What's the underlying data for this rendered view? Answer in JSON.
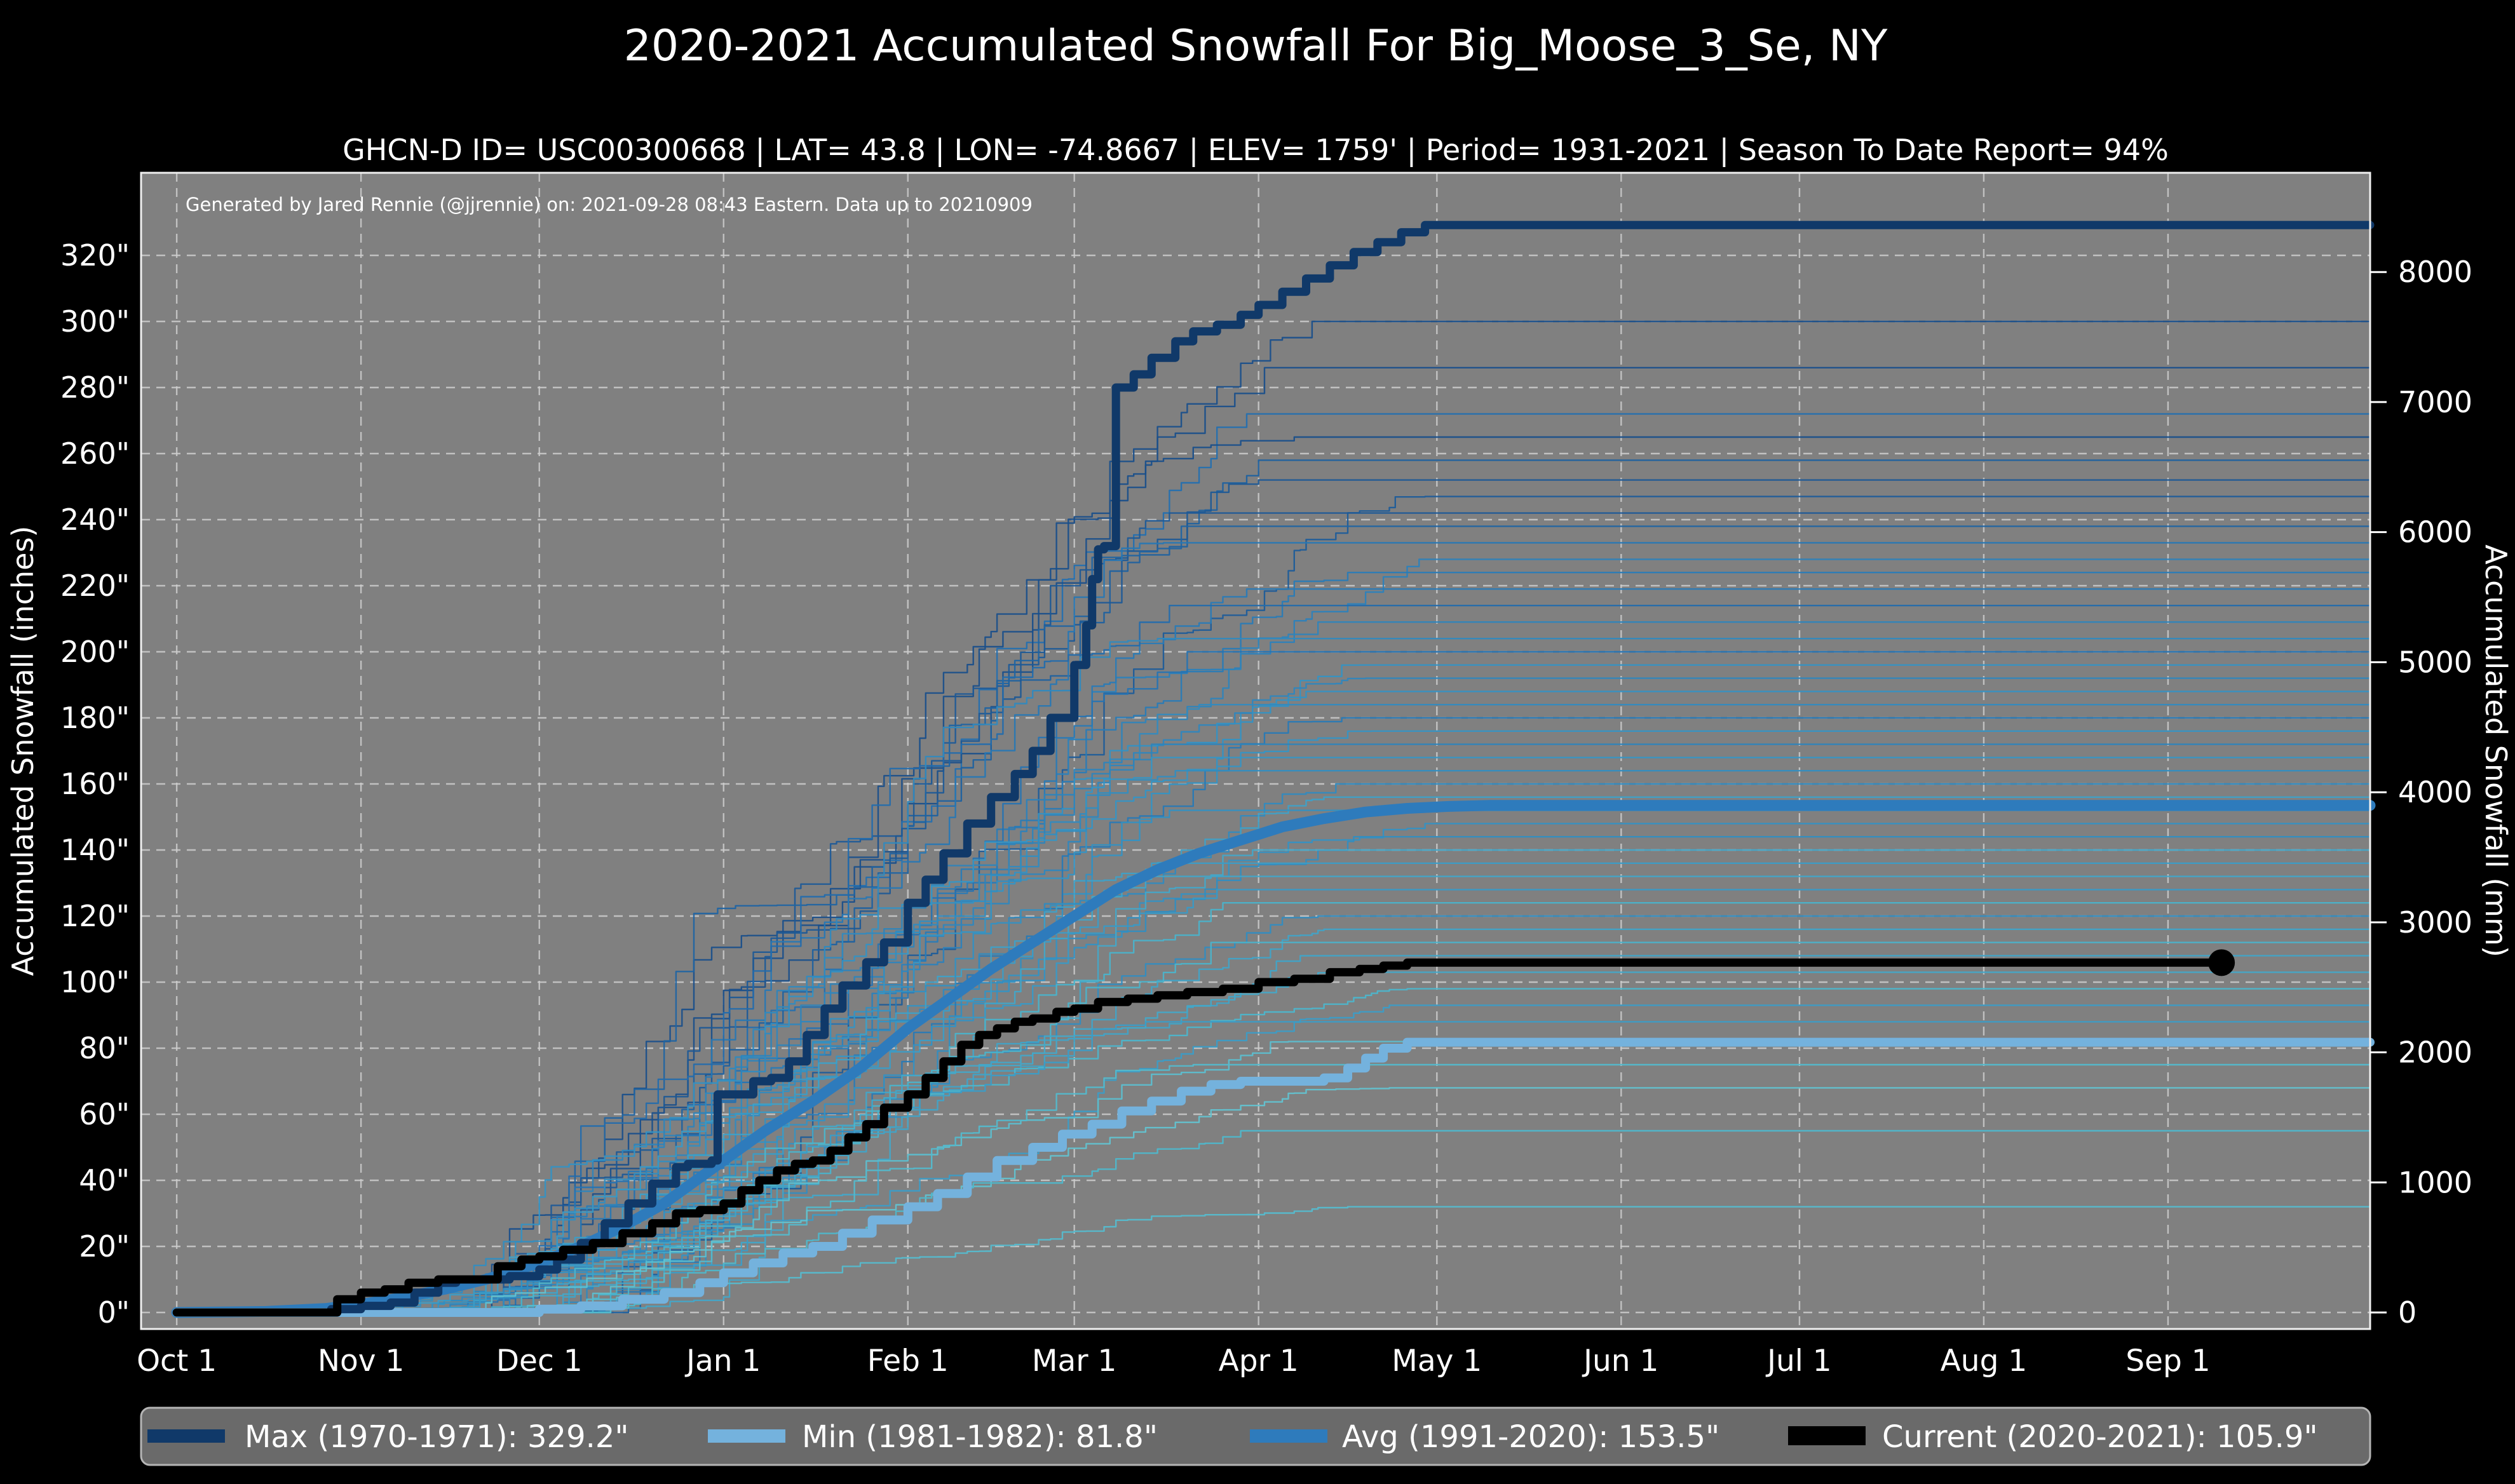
{
  "page": {
    "background": "#000000",
    "plot_bg": "#808080",
    "grid_color": "#cdcdcd",
    "border_color": "#f0f0f0",
    "text_color": "#ffffff"
  },
  "header": {
    "title": "2020-2021 Accumulated Snowfall For Big_Moose_3_Se, NY",
    "subtitle": "GHCN-D ID= USC00300668 | LAT= 43.8 | LON= -74.8667 | ELEV= 1759' | Period= 1931-2021 | Season To Date Report= 94%"
  },
  "annotation": "Generated by Jared Rennie (@jjrennie) on: 2021-09-28 08:43 Eastern. Data up to 20210909",
  "chart_data": {
    "type": "line",
    "title": "2020-2021 Accumulated Snowfall For Big_Moose_3_Se, NY",
    "xlabel": "",
    "ylabel_left": "Accumulated Snowfall (inches)",
    "ylabel_right": "Accumulated Snowfall (mm)",
    "x_axis": {
      "tick_labels": [
        "Oct 1",
        "Nov 1",
        "Dec 1",
        "Jan 1",
        "Feb 1",
        "Mar 1",
        "Apr 1",
        "May 1",
        "Jun 1",
        "Jul 1",
        "Aug 1",
        "Sep 1"
      ],
      "tick_days": [
        0,
        31,
        61,
        92,
        123,
        151,
        182,
        212,
        243,
        273,
        304,
        335
      ],
      "domain_days": [
        -6,
        369
      ]
    },
    "y_axis_left": {
      "label": "Accumulated Snowfall (inches)",
      "tick_values": [
        0,
        20,
        40,
        60,
        80,
        100,
        120,
        140,
        160,
        180,
        200,
        220,
        240,
        260,
        280,
        300,
        320
      ],
      "tick_labels": [
        "0\"",
        "20\"",
        "40\"",
        "60\"",
        "80\"",
        "100\"",
        "120\"",
        "140\"",
        "160\"",
        "180\"",
        "200\"",
        "220\"",
        "240\"",
        "260\"",
        "280\"",
        "300\"",
        "320\""
      ],
      "range_inches": [
        -5,
        345
      ],
      "grid": true
    },
    "y_axis_right": {
      "label": "Accumulated Snowfall (mm)",
      "tick_values": [
        0,
        1000,
        2000,
        3000,
        4000,
        5000,
        6000,
        7000,
        8000
      ],
      "tick_labels": [
        "0",
        "1000",
        "2000",
        "3000",
        "4000",
        "5000",
        "6000",
        "7000",
        "8000"
      ],
      "mm_per_inch": 25.4
    },
    "series": [
      {
        "id": "max",
        "legend_label": "Max (1970-1971):  329.2\"",
        "final_value_inches": 329.2,
        "color": "#103969",
        "line_width": 13,
        "style": "step",
        "days": [
          0,
          18,
          26,
          31,
          36,
          40,
          44,
          47,
          52,
          56,
          61,
          64,
          68,
          72,
          76,
          80,
          84,
          86,
          88,
          90,
          91,
          97,
          100,
          103,
          106,
          109,
          112,
          116,
          119,
          123,
          126,
          129,
          133,
          137,
          141,
          144,
          147,
          151,
          153,
          154,
          155,
          156,
          158,
          161,
          164,
          168,
          171,
          175,
          179,
          182,
          186,
          190,
          194,
          198,
          202,
          206,
          210,
          369
        ],
        "values": [
          0,
          0,
          1,
          2,
          3,
          6,
          9,
          10,
          10,
          11,
          13,
          16,
          21,
          27,
          33,
          39,
          44,
          45,
          45,
          46,
          66,
          70,
          71,
          76,
          84,
          92,
          99,
          106,
          112,
          124,
          131,
          139,
          148,
          156,
          163,
          170,
          180,
          196,
          208,
          222,
          231,
          232,
          280,
          284,
          289,
          294,
          297,
          299,
          302,
          305,
          309,
          313,
          317,
          321,
          324,
          327,
          329.2,
          329.2
        ]
      },
      {
        "id": "min",
        "legend_label": "Min (1981-1982):  81.8\"",
        "final_value_inches": 81.8,
        "color": "#74b2dd",
        "line_width": 14,
        "style": "step",
        "days": [
          0,
          55,
          61,
          68,
          75,
          82,
          88,
          92,
          97,
          102,
          107,
          112,
          117,
          123,
          128,
          133,
          138,
          144,
          149,
          154,
          159,
          164,
          169,
          174,
          179,
          184,
          189,
          193,
          197,
          200,
          203,
          207,
          369
        ],
        "values": [
          0,
          0,
          1,
          2,
          4,
          6,
          9,
          12,
          15,
          18,
          20,
          24,
          28,
          32,
          36,
          41,
          46,
          50,
          54,
          57,
          61,
          64,
          67,
          69,
          70,
          70,
          70,
          71,
          74,
          77,
          80,
          81.8,
          81.8
        ]
      },
      {
        "id": "avg",
        "legend_label": "Avg (1991-2020):  153.5\"",
        "final_value_inches": 153.5,
        "color": "#2e7bbc",
        "line_width": 17,
        "style": "smooth",
        "days": [
          0,
          15,
          25,
          31,
          38,
          45,
          52,
          61,
          68,
          75,
          82,
          92,
          99,
          107,
          115,
          123,
          130,
          137,
          144,
          151,
          158,
          165,
          172,
          179,
          186,
          193,
          200,
          207,
          214,
          221,
          369
        ],
        "values": [
          0,
          0.3,
          1.2,
          2.5,
          4.5,
          7,
          10,
          15,
          20,
          26,
          33,
          46,
          55,
          64,
          74,
          86,
          95,
          104,
          112,
          120,
          128,
          134,
          139,
          143,
          147,
          149.5,
          151.5,
          152.6,
          153.2,
          153.5,
          153.5
        ]
      },
      {
        "id": "current",
        "legend_label": "Current (2020-2021):  105.9\"",
        "final_value_inches": 105.9,
        "color": "#000000",
        "line_width": 13,
        "style": "step",
        "end_marker": {
          "day": 344,
          "value": 105.9,
          "radius": 21
        },
        "days": [
          0,
          24,
          27,
          31,
          35,
          39,
          44,
          49,
          54,
          58,
          61,
          65,
          70,
          75,
          80,
          84,
          88,
          92,
          95,
          98,
          101,
          104,
          107,
          110,
          113,
          116,
          119,
          123,
          126,
          129,
          132,
          135,
          138,
          141,
          144,
          148,
          151,
          155,
          160,
          165,
          170,
          176,
          182,
          188,
          194,
          199,
          203,
          207,
          344
        ],
        "values": [
          0,
          0,
          4,
          6,
          7,
          9,
          10,
          10,
          14,
          16,
          17,
          19,
          21,
          24,
          27,
          30,
          31,
          33,
          37,
          40,
          43,
          45,
          46,
          49,
          53,
          57,
          62,
          66,
          71,
          76,
          81,
          84,
          86,
          88,
          89,
          91,
          92,
          94,
          95,
          96,
          97,
          98,
          100,
          101,
          103,
          104,
          105,
          105.9,
          105.9
        ]
      }
    ],
    "background_seasons": {
      "description": "Thin lines: each snowfall season 1931-2021 (approximate traces)",
      "color_palette": [
        "#1a4f8a",
        "#2470b0",
        "#3593c4",
        "#4db6cb",
        "#79cfd6"
      ],
      "line_width": 2.4,
      "final_totals_inches": [
        300,
        286,
        272,
        265,
        258,
        252,
        247,
        242,
        238,
        233,
        228,
        224,
        219,
        214,
        209,
        204,
        200,
        196,
        192,
        188,
        184,
        180,
        176,
        172,
        168,
        164,
        160,
        156,
        152,
        148,
        144,
        140,
        136,
        132,
        128,
        124,
        120,
        116,
        112,
        108,
        103,
        98,
        93,
        88,
        82,
        75,
        68,
        55,
        32
      ]
    },
    "legend_position": "bottom"
  },
  "legend": {
    "items": [
      {
        "label": "Max (1970-1971):  329.2\"",
        "color": "#103969"
      },
      {
        "label": "Min (1981-1982):  81.8\"",
        "color": "#74b2dd"
      },
      {
        "label": "Avg (1991-2020):  153.5\"",
        "color": "#2e7bbc"
      },
      {
        "label": "Current (2020-2021):  105.9\"",
        "color": "#000000"
      }
    ]
  }
}
